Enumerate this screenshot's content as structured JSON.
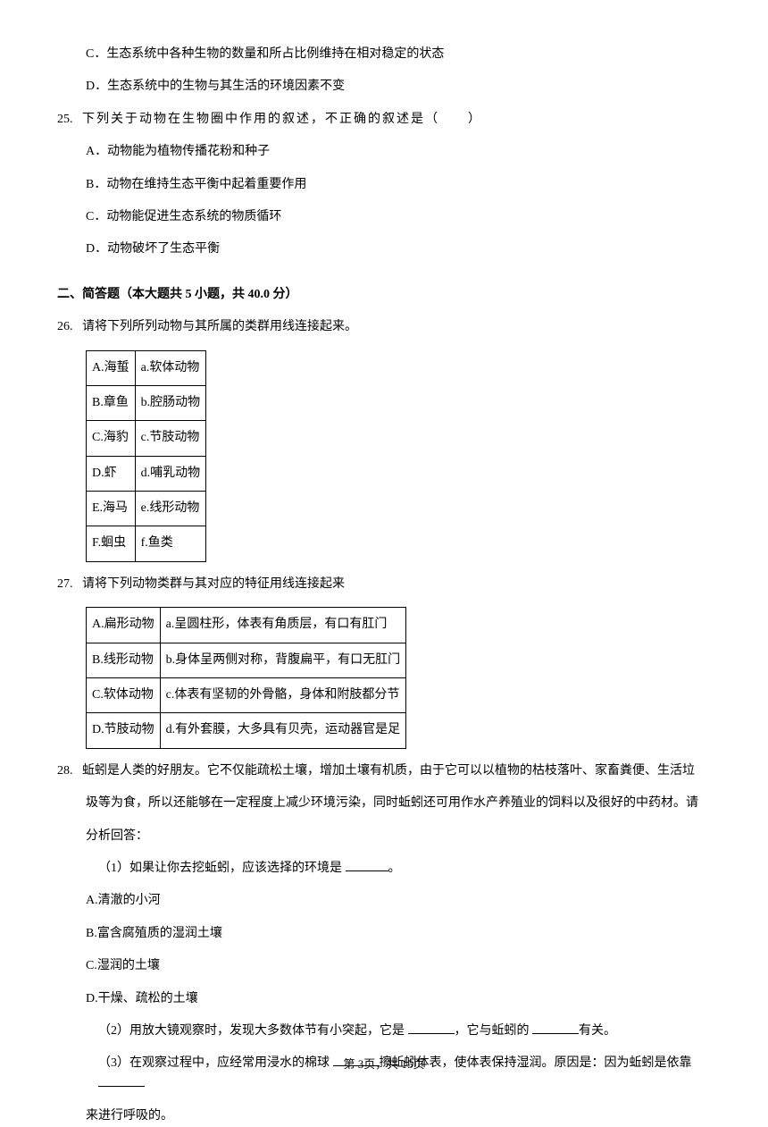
{
  "q24_cont": {
    "options": [
      {
        "letter": "C．",
        "text": "生态系统中各种生物的数量和所占比例维持在相对稳定的状态"
      },
      {
        "letter": "D．",
        "text": "生态系统中的生物与其生活的环境因素不变"
      }
    ]
  },
  "q25": {
    "num": "25.",
    "stem": "下列关于动物在生物圈中作用的叙述，不正确的叙述是（　　）",
    "options": [
      {
        "letter": "A．",
        "text": "动物能为植物传播花粉和种子"
      },
      {
        "letter": "B．",
        "text": "动物在维持生态平衡中起着重要作用"
      },
      {
        "letter": "C．",
        "text": "动物能促进生态系统的物质循环"
      },
      {
        "letter": "D．",
        "text": "动物破坏了生态平衡"
      }
    ]
  },
  "section2": {
    "label": "二、简答题（本大题共 5 小题，共 40.0 分）"
  },
  "q26": {
    "num": "26.",
    "stem": "请将下列所列动物与其所属的类群用线连接起来。",
    "rows": [
      [
        "A.海蜇",
        "a.软体动物"
      ],
      [
        "B.章鱼",
        "b.腔肠动物"
      ],
      [
        "C.海豹",
        "c.节肢动物"
      ],
      [
        "D.虾",
        "d.哺乳动物"
      ],
      [
        "E.海马",
        "e.线形动物"
      ],
      [
        "F.蛔虫",
        "f.鱼类"
      ]
    ],
    "col_widths": [
      "60px",
      "72px"
    ]
  },
  "q27": {
    "num": "27.",
    "stem": "请将下列动物类群与其对应的特征用线连接起来",
    "rows": [
      [
        "A.扁形动物",
        "a.呈圆柱形，体表有角质层，有口有肛门"
      ],
      [
        "B.线形动物",
        "b.身体呈两侧对称，背腹扁平，有口无肛门"
      ],
      [
        "C.软体动物",
        "c.体表有坚韧的外骨骼，身体和附肢都分节"
      ],
      [
        "D.节肢动物",
        "d.有外套膜，大多具有贝壳，运动器官是足"
      ]
    ],
    "col_widths": [
      "78px",
      "286px"
    ]
  },
  "q28": {
    "num": "28.",
    "stem_parts": [
      "蚯蚓是人类的好朋友。它不仅能疏松土壤，增加土壤有机质，由于它可以以植物的枯枝落叶、家畜粪便、生活垃",
      "圾等为食，所以还能够在一定程度上减少环境污染，同时蚯蚓还可用作水产养殖业的饲料以及很好的中药材。请",
      "分析回答："
    ],
    "sub1_prefix": "（1）如果让你去挖蚯蚓，应该选择的环境是 ",
    "sub1_suffix": "。",
    "sub1_options": [
      "A.清澈的小河",
      "B.富含腐殖质的湿润土壤",
      "C.湿润的土壤",
      "D.干燥、疏松的土壤"
    ],
    "sub2_a": "（2）用放大镜观察时，发现大多数体节有小突起，它是 ",
    "sub2_b": "，它与蚯蚓的 ",
    "sub2_c": "有关。",
    "sub3_a": "（3）在观察过程中，应经常用浸水的棉球 ",
    "sub3_b": "擦蚯蚓体表，使体表保持湿润。原因是：因为蚯蚓是依靠 ",
    "sub3_c": "来进行呼吸的。"
  },
  "footer": {
    "page": "第 3页，共 15页"
  }
}
